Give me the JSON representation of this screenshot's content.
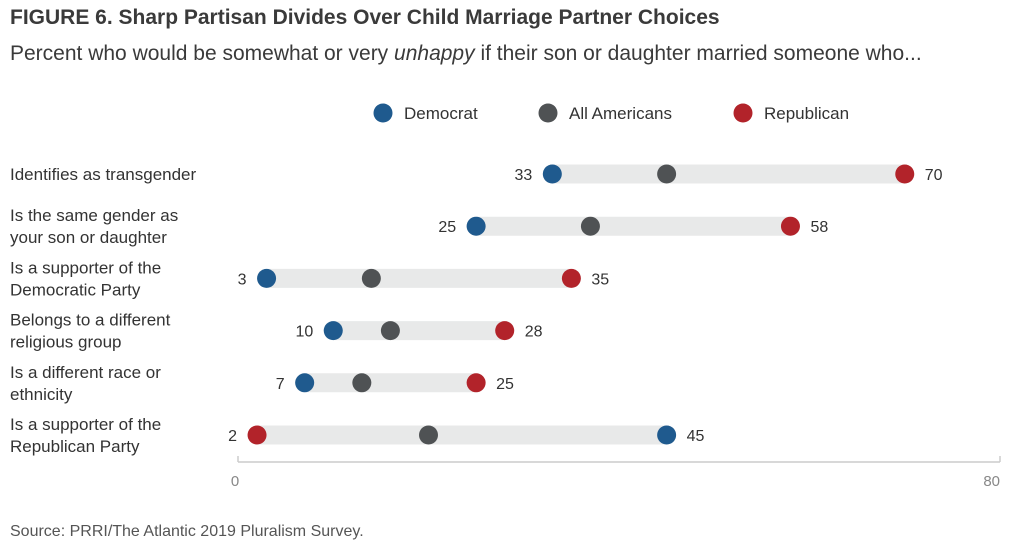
{
  "title": "FIGURE 6. Sharp Partisan Divides Over Child Marriage Partner Choices",
  "subtitle_before": "Percent who would be somewhat or very ",
  "subtitle_emphasis": "unhappy",
  "subtitle_after": " if their son or daughter married someone who...",
  "source": "Source: PRRI/The Atlantic 2019 Pluralism Survey.",
  "colors": {
    "democrat": "#1f5a8e",
    "all_americans": "#4f5254",
    "republican": "#b2232a",
    "track": "#e8e9e9",
    "axis": "#cccccc"
  },
  "chart_data": {
    "type": "dot-range",
    "xlim": [
      0,
      80
    ],
    "x_ticks": [
      "0",
      "80"
    ],
    "legend": {
      "placement": "top-center",
      "entries": [
        {
          "key": "democrat",
          "label": "Democrat"
        },
        {
          "key": "all_americans",
          "label": "All Americans"
        },
        {
          "key": "republican",
          "label": "Republican"
        }
      ]
    },
    "rows": [
      {
        "label_lines": [
          "Identifies as transgender"
        ],
        "democrat": 33,
        "all_americans": 45,
        "republican": 70
      },
      {
        "label_lines": [
          "Is the same gender as",
          "your son or daughter"
        ],
        "democrat": 25,
        "all_americans": 37,
        "republican": 58
      },
      {
        "label_lines": [
          "Is a supporter of the",
          "Democratic Party"
        ],
        "democrat": 3,
        "all_americans": 14,
        "republican": 35
      },
      {
        "label_lines": [
          "Belongs to a different",
          "religious group"
        ],
        "democrat": 10,
        "all_americans": 16,
        "republican": 28
      },
      {
        "label_lines": [
          "Is a different race or",
          "ethnicity"
        ],
        "democrat": 7,
        "all_americans": 13,
        "republican": 25
      },
      {
        "label_lines": [
          "Is a supporter of the",
          "Republican Party"
        ],
        "democrat": 45,
        "all_americans": 20,
        "republican": 2
      }
    ]
  }
}
